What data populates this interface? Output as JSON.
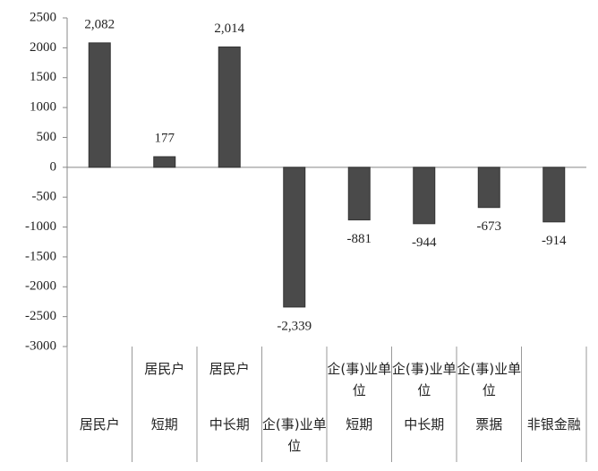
{
  "chart_data": {
    "type": "bar",
    "category_groups": [
      null,
      "居民户",
      "居民户",
      null,
      "企(事)业单位",
      "企(事)业单位",
      "企(事)业单位",
      null
    ],
    "categories": [
      "居民户",
      "短期",
      "中长期",
      "企(事)业单位",
      "短期",
      "中长期",
      "票据",
      "非银金融"
    ],
    "values": [
      2082,
      177,
      2014,
      -2339,
      -881,
      -944,
      -673,
      -914
    ],
    "value_labels": [
      "2,082",
      "177",
      "2,014",
      "-2,339",
      "-881",
      "-944",
      "-673",
      "-914"
    ],
    "color": "#4a4a4a",
    "ylim": [
      -3000,
      2500
    ],
    "yticks": [
      -3000,
      -2500,
      -2000,
      -1500,
      -1000,
      -500,
      0,
      500,
      1000,
      1500,
      2000,
      2500
    ]
  }
}
